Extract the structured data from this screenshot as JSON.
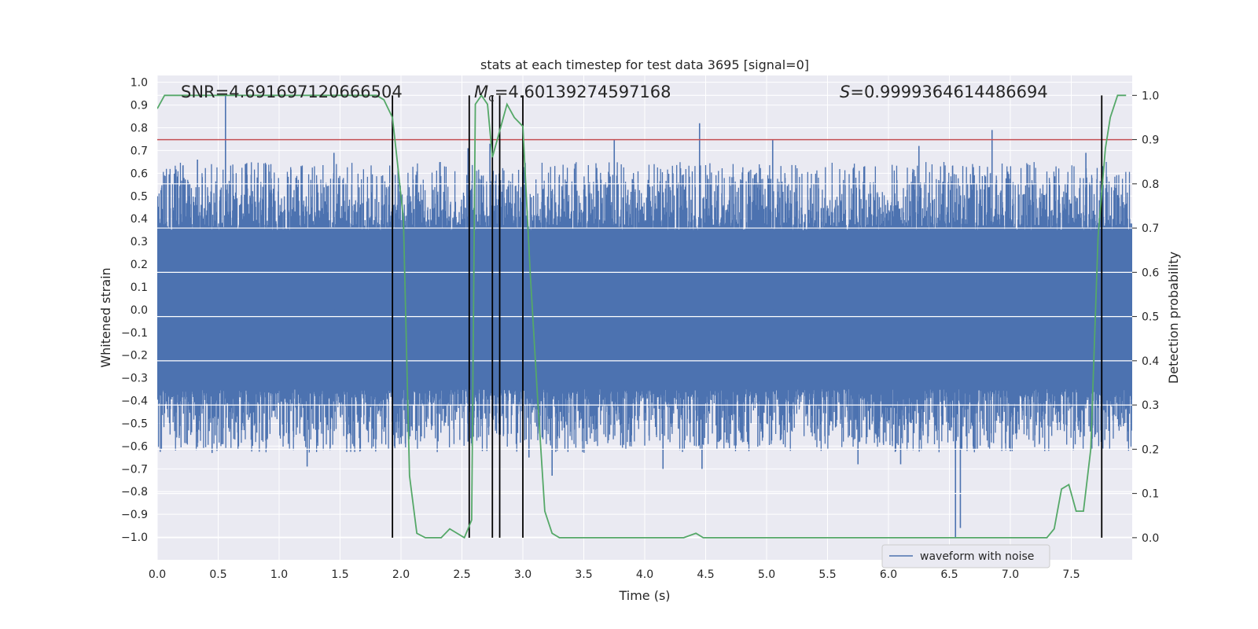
{
  "chart_data": {
    "type": "line",
    "title": "stats at each timestep for test data 3695 [signal=0]",
    "xlabel": "Time (s)",
    "ylabel": "Whitened strain",
    "y2label": "Detection probability",
    "xlim": [
      0.0,
      8.0
    ],
    "ylim": [
      -1.1,
      1.03
    ],
    "y2lim": [
      -0.05,
      1.045
    ],
    "xticks": [
      0.0,
      0.5,
      1.0,
      1.5,
      2.0,
      2.5,
      3.0,
      3.5,
      4.0,
      4.5,
      5.0,
      5.5,
      6.0,
      6.5,
      7.0,
      7.5
    ],
    "xtick_labels": [
      "0.0",
      "0.5",
      "1.0",
      "1.5",
      "2.0",
      "2.5",
      "3.0",
      "3.5",
      "4.0",
      "4.5",
      "5.0",
      "5.5",
      "6.0",
      "6.5",
      "7.0",
      "7.5"
    ],
    "yticks": [
      -1.0,
      -0.9,
      -0.8,
      -0.7,
      -0.6,
      -0.5,
      -0.4,
      -0.3,
      -0.2,
      -0.1,
      0.0,
      0.1,
      0.2,
      0.3,
      0.4,
      0.5,
      0.6,
      0.7,
      0.8,
      0.9,
      1.0
    ],
    "ytick_labels": [
      "−1.0",
      "−0.9",
      "−0.8",
      "−0.7",
      "−0.6",
      "−0.5",
      "−0.4",
      "−0.3",
      "−0.2",
      "−0.1",
      "0.0",
      "0.1",
      "0.2",
      "0.3",
      "0.4",
      "0.5",
      "0.6",
      "0.7",
      "0.8",
      "0.9",
      "1.0"
    ],
    "y2ticks": [
      0.0,
      0.1,
      0.2,
      0.3,
      0.4,
      0.5,
      0.6,
      0.7,
      0.8,
      0.9,
      1.0
    ],
    "y2tick_labels": [
      "0.0",
      "0.1",
      "0.2",
      "0.3",
      "0.4",
      "0.5",
      "0.6",
      "0.7",
      "0.8",
      "0.9",
      "1.0"
    ],
    "annotations": {
      "snr": "SNR=4.691697120666504",
      "mc_symbol": "M",
      "mc_sub": "c",
      "mc_value": "=4.60139274597168",
      "s_symbol": "S",
      "s_value": "=0.9999364614486694"
    },
    "legend": {
      "label": "waveform with noise",
      "position": "lower-right"
    },
    "threshold": {
      "axis": "y2",
      "value": 0.9,
      "color": "#c44e52"
    },
    "vlines": [
      1.93,
      2.56,
      2.75,
      2.81,
      3.0,
      7.75
    ],
    "waveform": {
      "name": "waveform with noise",
      "color": "#4c72b0",
      "duration": 8.0,
      "n_samples": 3200,
      "body_level": 0.35,
      "peaks": [
        {
          "t": 0.56,
          "v": 0.94
        },
        {
          "t": 4.45,
          "v": 0.82
        },
        {
          "t": 6.85,
          "v": 0.79
        },
        {
          "t": 3.75,
          "v": 0.75
        },
        {
          "t": 5.05,
          "v": 0.75
        },
        {
          "t": 2.55,
          "v": 0.71
        },
        {
          "t": 2.73,
          "v": 0.73
        },
        {
          "t": 1.45,
          "v": 0.69
        },
        {
          "t": 6.25,
          "v": 0.72
        },
        {
          "t": 0.33,
          "v": 0.66
        },
        {
          "t": 7.62,
          "v": 0.69
        },
        {
          "t": 6.55,
          "v": -1.0
        },
        {
          "t": 6.59,
          "v": -0.96
        },
        {
          "t": 1.23,
          "v": -0.69
        },
        {
          "t": 3.24,
          "v": -0.73
        },
        {
          "t": 4.47,
          "v": -0.7
        },
        {
          "t": 4.15,
          "v": -0.7
        },
        {
          "t": 6.1,
          "v": -0.68
        },
        {
          "t": 2.55,
          "v": -0.58
        },
        {
          "t": 5.75,
          "v": -0.68
        },
        {
          "t": 3.05,
          "v": -0.65
        },
        {
          "t": 0.45,
          "v": -0.63
        }
      ]
    },
    "detection_probability": {
      "name": "detection probability",
      "color": "#55a868",
      "t": [
        0.0,
        0.06,
        0.2,
        0.4,
        0.6,
        0.8,
        1.0,
        1.2,
        1.4,
        1.6,
        1.7,
        1.8,
        1.86,
        1.93,
        1.97,
        2.02,
        2.07,
        2.13,
        2.2,
        2.28,
        2.33,
        2.4,
        2.46,
        2.52,
        2.58,
        2.61,
        2.66,
        2.71,
        2.75,
        2.8,
        2.87,
        2.93,
        3.0,
        3.06,
        3.12,
        3.18,
        3.24,
        3.3,
        3.4,
        3.6,
        3.8,
        4.0,
        4.2,
        4.32,
        4.42,
        4.48,
        4.6,
        4.8,
        5.0,
        5.3,
        5.5,
        5.7,
        6.0,
        6.3,
        6.6,
        6.9,
        7.1,
        7.3,
        7.36,
        7.42,
        7.48,
        7.54,
        7.6,
        7.66,
        7.72,
        7.78,
        7.82,
        7.88,
        7.95
      ],
      "p": [
        0.97,
        1.0,
        1.0,
        1.0,
        1.0,
        1.0,
        1.0,
        1.0,
        1.0,
        1.0,
        1.0,
        1.0,
        0.99,
        0.95,
        0.85,
        0.72,
        0.14,
        0.01,
        0.0,
        0.0,
        0.0,
        0.02,
        0.01,
        0.0,
        0.04,
        0.98,
        1.0,
        0.98,
        0.86,
        0.91,
        0.98,
        0.95,
        0.93,
        0.6,
        0.32,
        0.06,
        0.01,
        0.0,
        0.0,
        0.0,
        0.0,
        0.0,
        0.0,
        0.0,
        0.01,
        0.0,
        0.0,
        0.0,
        0.0,
        0.0,
        0.0,
        0.0,
        0.0,
        0.0,
        0.0,
        0.0,
        0.0,
        0.0,
        0.02,
        0.11,
        0.12,
        0.06,
        0.06,
        0.2,
        0.68,
        0.88,
        0.95,
        1.0,
        1.0
      ]
    }
  }
}
